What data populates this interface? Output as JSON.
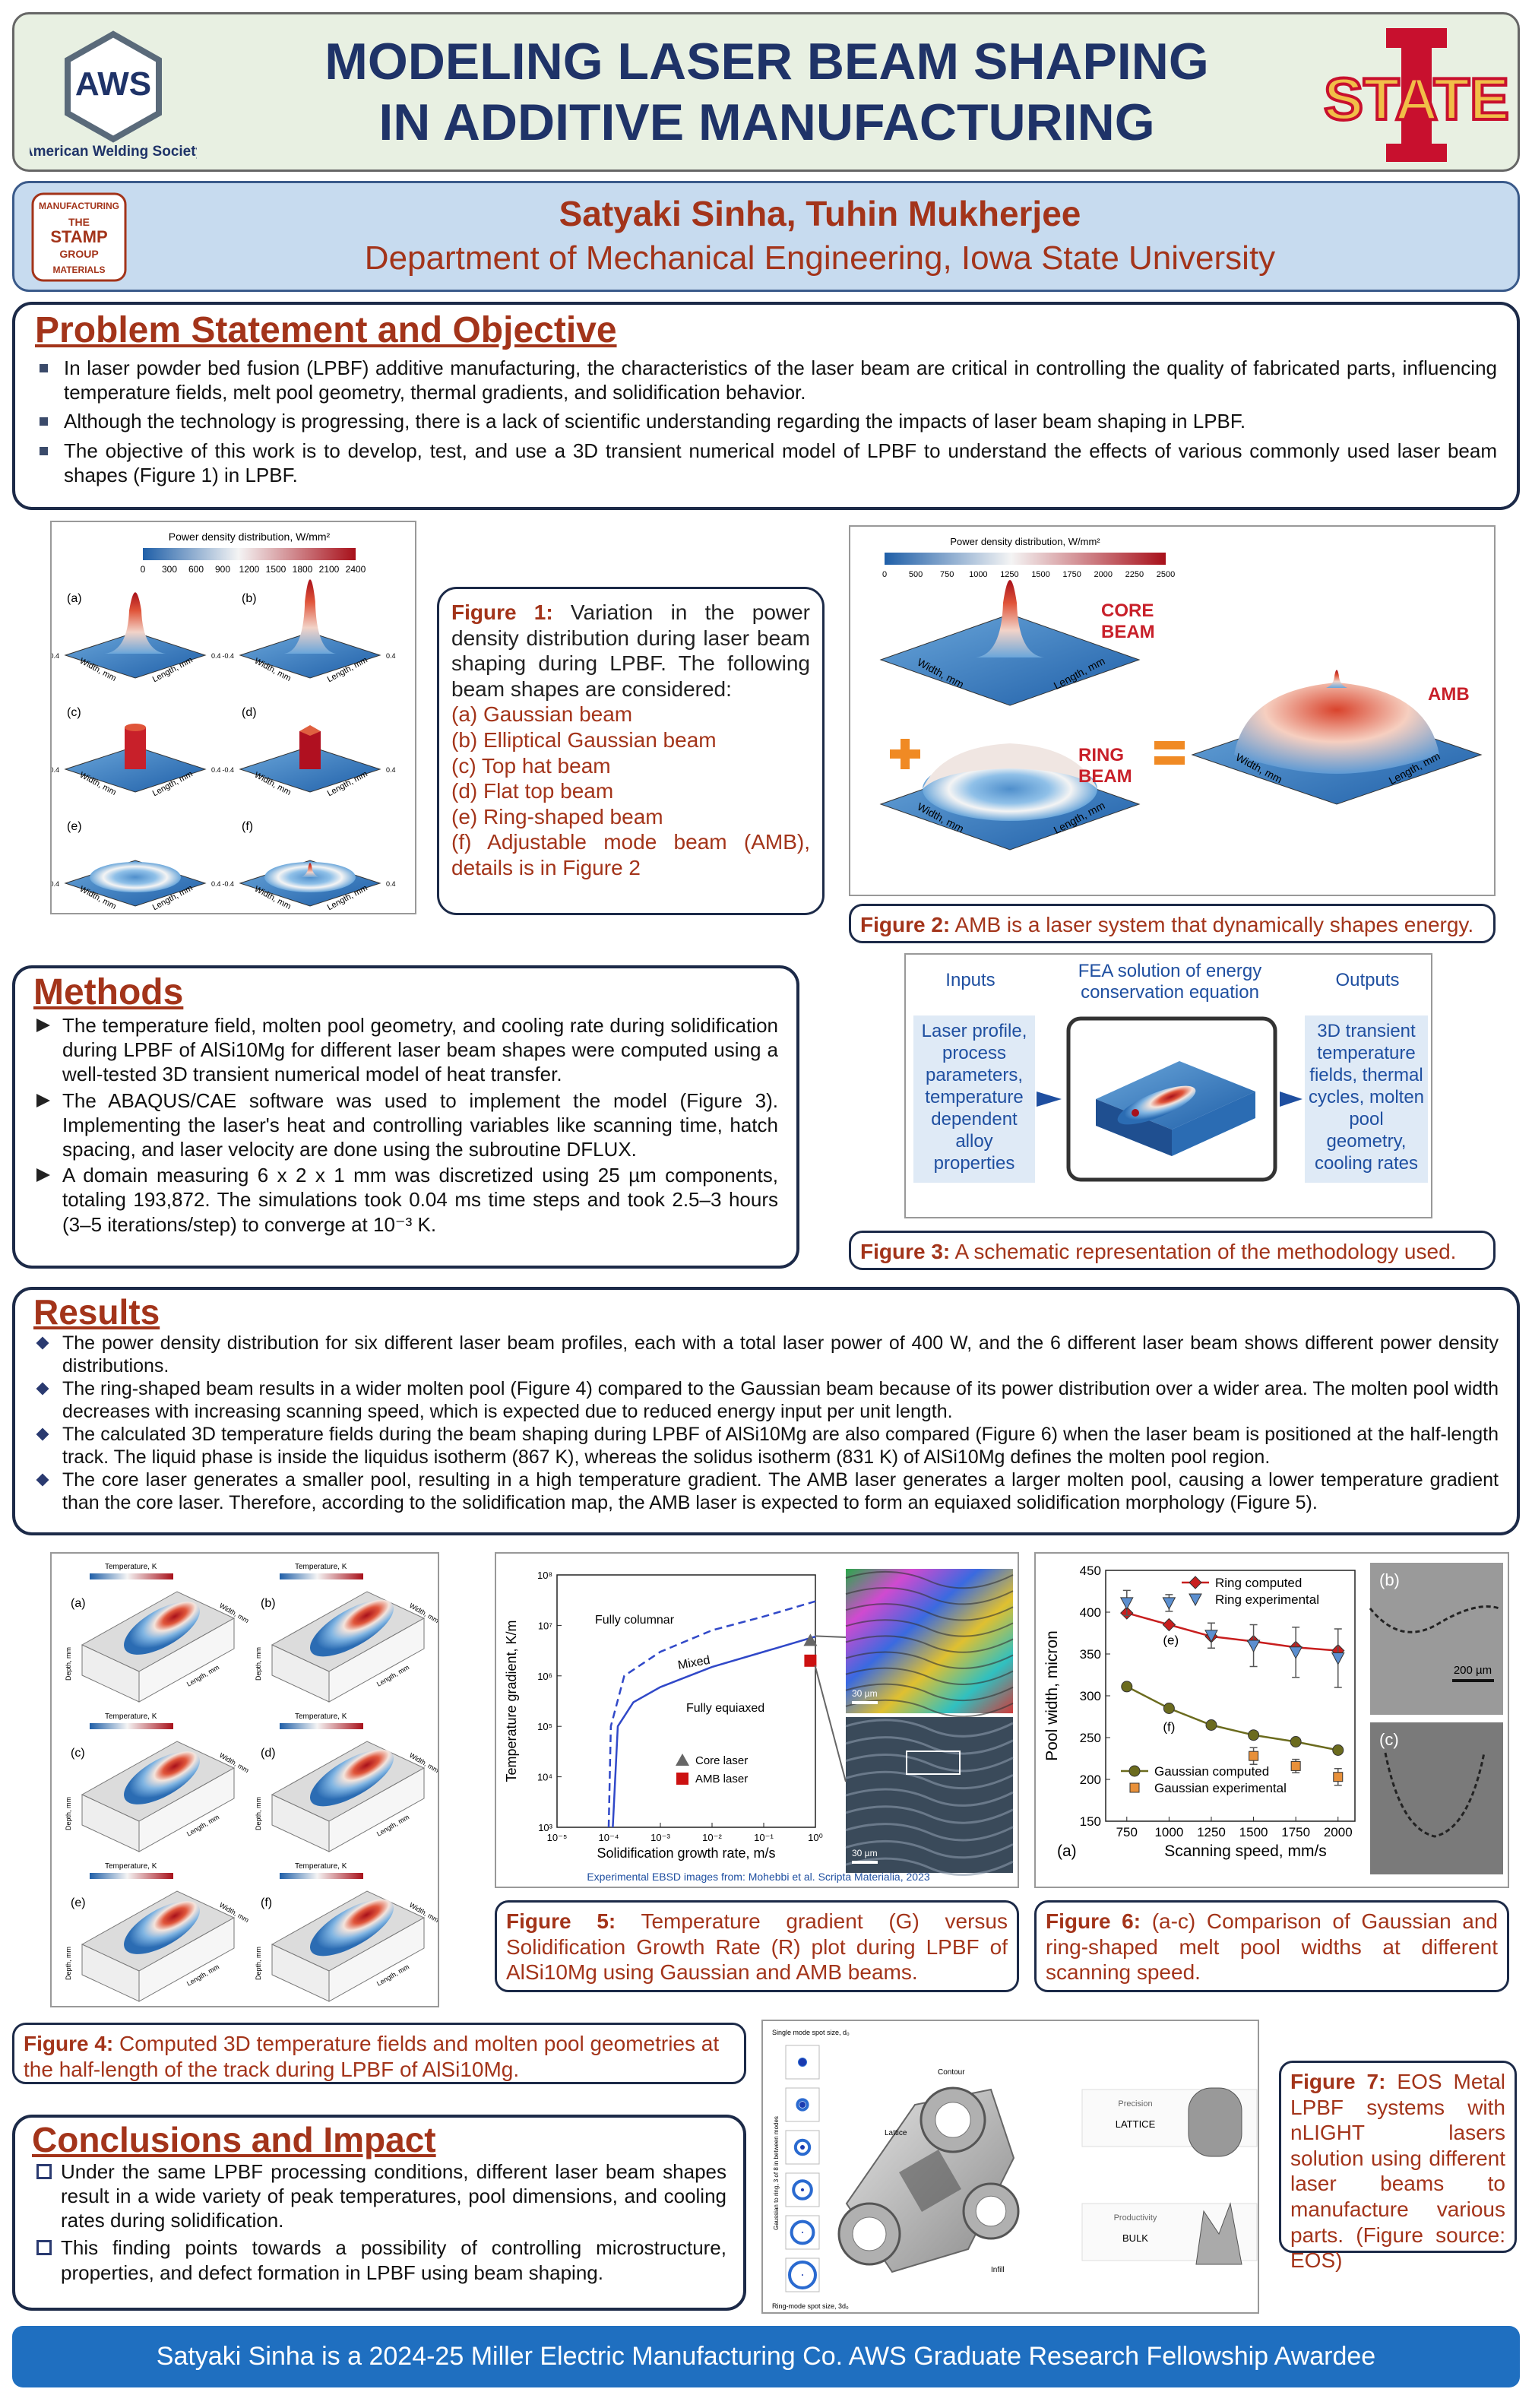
{
  "header": {
    "title_line1": "MODELING LASER BEAM SHAPING",
    "title_line2": "IN ADDITIVE MANUFACTURING",
    "left_logo": {
      "mark": "AWS",
      "name": "American Welding Society"
    },
    "right_logo": {
      "text": "STATE"
    }
  },
  "authors": {
    "names": "Satyaki Sinha, Tuhin Mukherjee",
    "affiliation": "Department of Mechanical Engineering, Iowa State University",
    "logo": {
      "top": "MANUFACTURING",
      "line1": "THE",
      "line2": "STAMP",
      "line3": "GROUP",
      "bottom": "MATERIALS"
    }
  },
  "problem": {
    "heading": "Problem Statement and Objective",
    "bullets": [
      "In laser powder bed fusion (LPBF) additive manufacturing, the characteristics of the laser beam are critical in controlling the quality of fabricated parts, influencing temperature fields, melt pool geometry, thermal gradients, and solidification behavior.",
      "Although the technology is progressing, there is a lack of scientific understanding regarding the impacts of laser beam shaping in LPBF.",
      "The objective of this work is to develop, test, and use a 3D transient numerical model of LPBF to understand the effects of various commonly used laser beam shapes (Figure 1) in LPBF."
    ]
  },
  "figure1": {
    "colorbar_title": "Power density distribution, W/mm²",
    "colorbar_ticks": [
      0,
      300,
      600,
      900,
      1200,
      1500,
      1800,
      2100,
      2400
    ],
    "panels": [
      "(a)",
      "(b)",
      "(c)",
      "(d)",
      "(e)",
      "(f)"
    ],
    "axis_width": "Width, mm",
    "axis_length": "Length, mm",
    "axis_ticks": [
      "-0.4",
      "0.4"
    ],
    "caption": {
      "label": "Figure 1:",
      "text": "Variation in the power density distribution during laser beam shaping during LPBF. The following beam shapes are considered:",
      "items": [
        "(a) Gaussian beam",
        "(b) Elliptical Gaussian beam",
        "(c) Top hat beam",
        "(d) Flat top beam",
        "(e) Ring-shaped beam",
        "(f) Adjustable mode beam (AMB), details is in Figure 2"
      ]
    }
  },
  "figure2": {
    "colorbar_title": "Power density distribution, W/mm²",
    "colorbar_ticks": [
      0,
      500,
      750,
      1000,
      1250,
      1500,
      1750,
      2000,
      2250,
      2500
    ],
    "core_label": [
      "CORE",
      "BEAM"
    ],
    "ring_label": [
      "RING",
      "BEAM"
    ],
    "amb_label": "AMB",
    "axis_width": "Width, mm",
    "axis_length": "Length, mm",
    "caption": {
      "label": "Figure 2:",
      "text": "AMB is a laser system that dynamically shapes energy."
    }
  },
  "methods": {
    "heading": "Methods",
    "bullets": [
      "The temperature field, molten pool geometry, and cooling rate during solidification during LPBF of AlSi10Mg for different laser beam shapes were computed using a well-tested 3D transient numerical model of heat transfer.",
      "The ABAQUS/CAE software was used to implement the model (Figure 3). Implementing the laser's heat and controlling variables like scanning time, hatch spacing, and laser velocity are done using the subroutine DFLUX.",
      "A domain measuring 6 x 2 x 1 mm was discretized using 25 µm components, totaling 193,872. The simulations took 0.04 ms time steps and took 2.5–3 hours (3–5 iterations/step) to converge at 10⁻³ K."
    ]
  },
  "figure3": {
    "inputs_title": "Inputs",
    "center_title": "FEA solution of energy conservation equation",
    "outputs_title": "Outputs",
    "inputs": "Laser profile, process parameters, temperature dependent alloy properties",
    "outputs": "3D transient temperature fields, thermal cycles, molten pool geometry, cooling rates",
    "caption": {
      "label": "Figure 3:",
      "text": "A schematic representation of the methodology used."
    }
  },
  "results": {
    "heading": "Results",
    "bullets": [
      "The power density distribution for six different laser beam profiles, each with a total laser power of 400 W, and the 6 different laser beam shows different power density distributions.",
      "The ring-shaped beam results in a wider molten pool (Figure 4) compared to the Gaussian beam because of its power distribution over a wider area. The molten pool width decreases with increasing scanning speed, which is expected due to reduced energy input per unit length.",
      "The calculated 3D temperature fields during the beam shaping during LPBF of AlSi10Mg are also compared (Figure 6) when the laser beam is positioned at the half-length track. The liquid phase is inside the liquidus isotherm (867 K), whereas the solidus isotherm (831 K) of AlSi10Mg defines the molten pool region.",
      "The core laser generates a smaller pool, resulting in a high temperature gradient. The AMB laser generates a larger molten pool, causing a lower temperature gradient than the core laser. Therefore, according to the solidification map, the AMB laser is expected to form an equiaxed solidification morphology (Figure 5)."
    ]
  },
  "figure4": {
    "colorbar_title": "Temperature, K",
    "panels": [
      "(a)",
      "(b)",
      "(c)",
      "(d)",
      "(e)",
      "(f)"
    ],
    "axis_depth": "Depth, mm",
    "axis_width": "Width, mm",
    "axis_length": "Length, mm",
    "caption": {
      "label": "Figure 4:",
      "text": "Computed 3D temperature fields and molten pool geometries at the half-length of the track during LPBF of AlSi10Mg."
    }
  },
  "figure5": {
    "caption": {
      "label": "Figure 5:",
      "text": "Temperature gradient (G) versus Solidification Growth Rate (R) plot during LPBF of AlSi10Mg using Gaussian and AMB beams."
    }
  },
  "figure6": {
    "image_labels": [
      "(b)",
      "(c)"
    ],
    "scale_bar": "200 µm",
    "caption": {
      "label": "Figure 6:",
      "text": "(a-c) Comparison of Gaussian and ring-shaped melt pool widths at different scanning speed."
    }
  },
  "figure7": {
    "single_mode": "Single mode spot size, d₀",
    "ring_mode": "Ring-mode spot size, 3d₀",
    "side_label": "Gaussian to ring, 3 of 8 in between modes",
    "part_labels": [
      "Contour",
      "Lattice",
      "Infill"
    ],
    "precision": "Precision",
    "lattice": "LATTICE",
    "productivity": "Productivity",
    "bulk": "BULK",
    "caption": {
      "label": "Figure 7:",
      "text": "EOS Metal LPBF systems with nLIGHT lasers solution using different laser beams to manufacture various parts. (Figure source: EOS)"
    }
  },
  "conclusions": {
    "heading": "Conclusions and Impact",
    "bullets": [
      "Under the same LPBF processing conditions, different laser beam shapes result in a wide variety of peak temperatures, pool dimensions, and cooling rates during solidification.",
      "This finding points towards a possibility of controlling microstructure, properties, and defect formation in LPBF using beam shaping."
    ]
  },
  "footer": "Satyaki Sinha is a 2024-25 Miller Electric Manufacturing Co. AWS Graduate Research Fellowship Awardee",
  "chart_data": [
    {
      "type": "scatter",
      "xlabel": "Solidification growth rate, m/s",
      "ylabel": "Temperature gradient, K/m",
      "xscale": "log",
      "yscale": "log",
      "xlim": [
        1e-05,
        1
      ],
      "ylim": [
        1000,
        100000000
      ],
      "xticks": [
        {
          "value": 1e-05,
          "label": "10⁻⁵"
        },
        {
          "value": 0.0001,
          "label": "10⁻⁴"
        },
        {
          "value": 0.001,
          "label": "10⁻³"
        },
        {
          "value": 0.01,
          "label": "10⁻²"
        },
        {
          "value": 0.1,
          "label": "10⁻¹"
        },
        {
          "value": 1,
          "label": "10⁰"
        }
      ],
      "yticks": [
        {
          "value": 1000,
          "label": "10³"
        },
        {
          "value": 10000,
          "label": "10⁴"
        },
        {
          "value": 100000,
          "label": "10⁵"
        },
        {
          "value": 1000000,
          "label": "10⁶"
        },
        {
          "value": 10000000,
          "label": "10⁷"
        },
        {
          "value": 100000000,
          "label": "10⁸"
        }
      ],
      "regions": [
        "Fully columnar",
        "Mixed",
        "Fully equiaxed"
      ],
      "lines": [
        {
          "color": "#3048c8",
          "dash": true,
          "x": [
            0.0001,
            0.00011,
            0.0002,
            0.001,
            0.01,
            0.1,
            1
          ],
          "y": [
            1000,
            100000,
            1000000,
            3000000,
            8000000,
            15000000,
            30000000
          ]
        },
        {
          "color": "#3048c8",
          "dash": false,
          "x": [
            0.00012,
            0.00015,
            0.0003,
            0.001,
            0.01,
            0.1,
            1
          ],
          "y": [
            1000,
            100000,
            300000,
            600000,
            1500000,
            3000000,
            6000000
          ]
        }
      ],
      "series": [
        {
          "name": "Core laser",
          "color": "#666666",
          "marker": "triangle",
          "x": [
            0.8
          ],
          "values": [
            5000000
          ]
        },
        {
          "name": "AMB laser",
          "color": "#cc1111",
          "marker": "square",
          "x": [
            0.8
          ],
          "values": [
            2000000
          ]
        }
      ],
      "image_labels": [
        "30 µm",
        "30 µm"
      ],
      "credit": "Experimental EBSD images from: Mohebbi et al. Scripta Materialia, 2023"
    },
    {
      "type": "line",
      "xlabel": "Scanning speed, mm/s",
      "ylabel": "Pool width, micron",
      "panel": "(a)",
      "x": [
        750,
        1000,
        1250,
        1500,
        1750,
        2000
      ],
      "xlim": [
        625,
        2100
      ],
      "xticks": [
        750,
        1000,
        1250,
        1500,
        1750,
        2000
      ],
      "ylim": [
        150,
        450
      ],
      "yticks": [
        150,
        200,
        250,
        300,
        350,
        400,
        450
      ],
      "annotations": [
        "(e)",
        "(f)"
      ],
      "series": [
        {
          "name": "Ring computed",
          "color": "#c81e1e",
          "marker": "diamond",
          "line": true,
          "values": [
            399,
            385,
            371,
            365,
            358,
            354
          ]
        },
        {
          "name": "Ring experimental",
          "color": "#5b8fd0",
          "marker": "triangle",
          "line": false,
          "values": [
            411,
            411,
            372,
            360,
            352,
            345
          ],
          "errors": [
            15,
            10,
            15,
            25,
            30,
            35
          ]
        },
        {
          "name": "Gaussian computed",
          "color": "#6b6b1e",
          "marker": "circle",
          "line": true,
          "values": [
            311,
            285,
            265,
            253,
            245,
            235
          ]
        },
        {
          "name": "Gaussian experimental",
          "color": "#e8903a",
          "marker": "square",
          "line": false,
          "values": [
            null,
            null,
            null,
            228,
            216,
            203
          ],
          "errors": [
            null,
            null,
            null,
            10,
            8,
            10
          ]
        }
      ]
    }
  ]
}
